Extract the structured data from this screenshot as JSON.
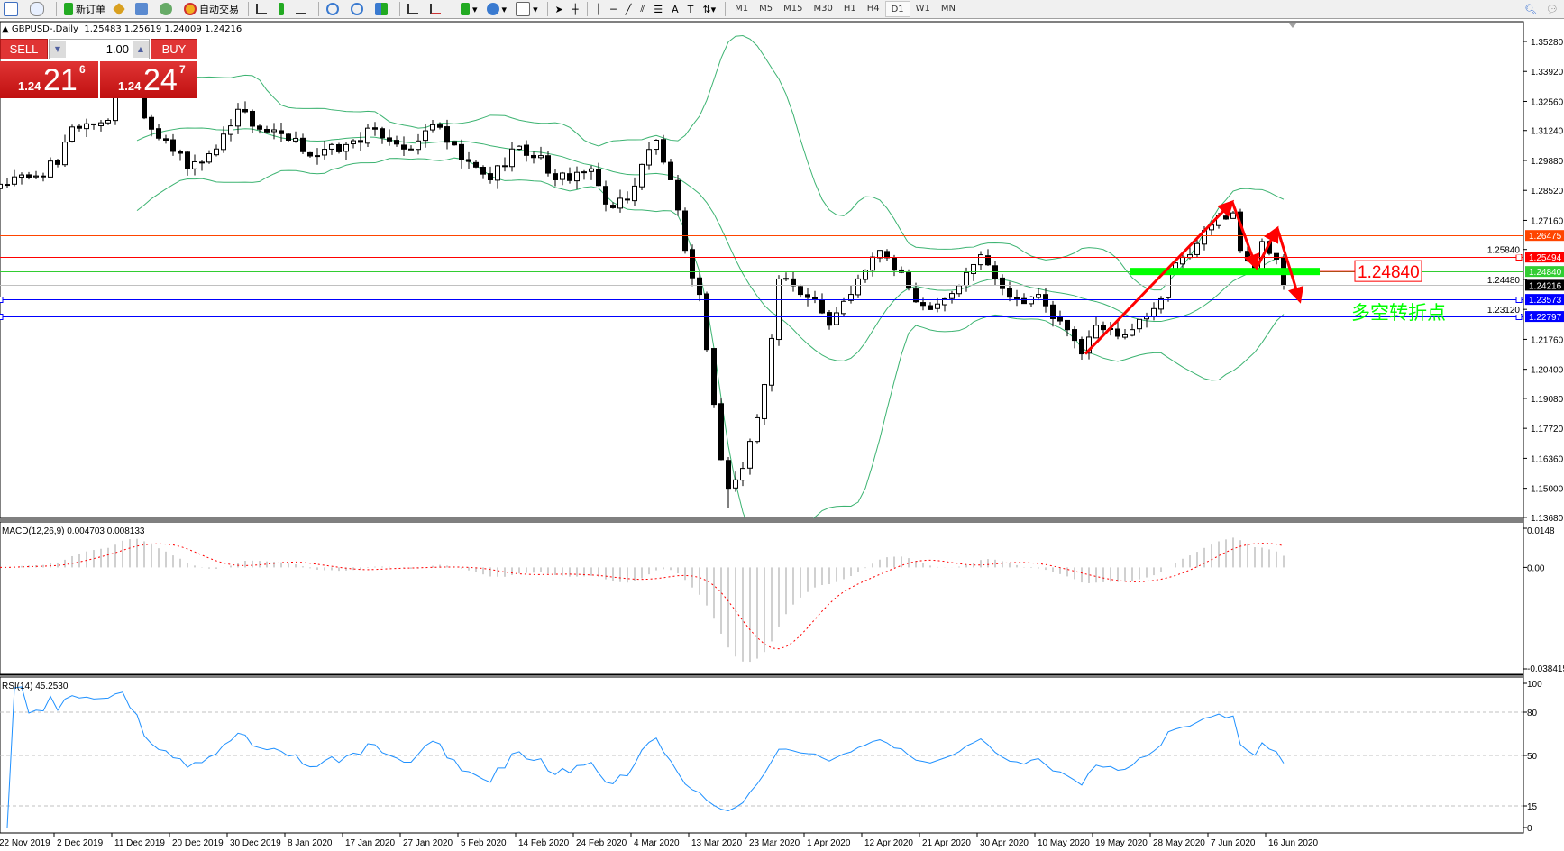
{
  "toolbar": {
    "new_order": "新订单",
    "autotrading": "自动交易",
    "timeframes": [
      "M1",
      "M5",
      "M15",
      "M30",
      "H1",
      "H4",
      "D1",
      "W1",
      "MN"
    ],
    "active_timeframe": "D1"
  },
  "chart": {
    "symbol": "GBPUSD-,Daily",
    "ohlc": "1.25483 1.25619 1.24009 1.24216"
  },
  "trade_panel": {
    "sell": "SELL",
    "buy": "BUY",
    "lot": "1.00",
    "sell_price": {
      "prefix": "1.24",
      "big": "21",
      "small": "6"
    },
    "buy_price": {
      "prefix": "1.24",
      "big": "24",
      "small": "7"
    }
  },
  "price_axis": {
    "ticks": [
      "1.35280",
      "1.33920",
      "1.32560",
      "1.31240",
      "1.29880",
      "1.28520",
      "1.27160",
      "1.25840",
      "1.24480",
      "1.23120",
      "1.21760",
      "1.20400",
      "1.19080",
      "1.17720",
      "1.16360",
      "1.15000",
      "1.13680"
    ]
  },
  "levels": [
    {
      "price": "1.26475",
      "color": "#ff4500",
      "text_color": "#ffffff"
    },
    {
      "price": "1.25494",
      "color": "#ff0000",
      "text_color": "#ffffff",
      "handle": true
    },
    {
      "price": "1.24840",
      "color": "#32cd32",
      "text_color": "#ffffff"
    },
    {
      "price": "1.24216",
      "color": "#000000",
      "line_color": "#c0c0c0",
      "text_color": "#ffffff"
    },
    {
      "price": "1.23573",
      "color": "#0000ff",
      "text_color": "#ffffff",
      "handle": true
    },
    {
      "price": "1.22797",
      "color": "#0000ff",
      "text_color": "#ffffff",
      "handle": true
    }
  ],
  "annotations": {
    "level_label": "1.24840",
    "note": "多空转折点",
    "note_color": "#00ff00",
    "arrow_color": "#ff0000",
    "zone_color": "#00ff00"
  },
  "macd": {
    "label": "MACD(12,26,9) 0.004703 0.008133",
    "axis": [
      "0.0148",
      "0.00",
      "-0.038415"
    ]
  },
  "rsi": {
    "label": "RSI(14) 45.2530",
    "axis": [
      "100",
      "80",
      "50",
      "15",
      "0"
    ]
  },
  "time_axis": [
    "22 Nov 2019",
    "2 Dec 2019",
    "11 Dec 2019",
    "20 Dec 2019",
    "30 Dec 2019",
    "8 Jan 2020",
    "17 Jan 2020",
    "27 Jan 2020",
    "5 Feb 2020",
    "14 Feb 2020",
    "24 Feb 2020",
    "4 Mar 2020",
    "13 Mar 2020",
    "23 Mar 2020",
    "1 Apr 2020",
    "12 Apr 2020",
    "21 Apr 2020",
    "30 Apr 2020",
    "10 May 2020",
    "19 May 2020",
    "28 May 2020",
    "7 Jun 2020",
    "16 Jun 2020"
  ],
  "chart_data": {
    "type": "candlestick",
    "indicators": [
      "Bollinger Bands (20,2)",
      "MACD(12,26,9)",
      "RSI(14)"
    ],
    "price_range": [
      1.1368,
      1.3528
    ],
    "close_keypoints_by_bar": [
      [
        0,
        1.288
      ],
      [
        4,
        1.2912
      ],
      [
        8,
        1.297
      ],
      [
        10,
        1.314
      ],
      [
        15,
        1.317
      ],
      [
        17,
        1.338
      ],
      [
        19,
        1.329
      ],
      [
        21,
        1.313
      ],
      [
        23,
        1.308
      ],
      [
        26,
        1.295
      ],
      [
        30,
        1.304
      ],
      [
        33,
        1.322
      ],
      [
        36,
        1.313
      ],
      [
        40,
        1.308
      ],
      [
        44,
        1.301
      ],
      [
        48,
        1.306
      ],
      [
        52,
        1.313
      ],
      [
        57,
        1.304
      ],
      [
        60,
        1.315
      ],
      [
        64,
        1.299
      ],
      [
        68,
        1.29
      ],
      [
        71,
        1.304
      ],
      [
        75,
        1.301
      ],
      [
        77,
        1.29
      ],
      [
        82,
        1.295
      ],
      [
        84,
        1.279
      ],
      [
        87,
        1.281
      ],
      [
        89,
        1.297
      ],
      [
        91,
        1.308
      ],
      [
        93,
        1.29
      ],
      [
        95,
        1.258
      ],
      [
        97,
        1.238
      ],
      [
        98,
        1.213
      ],
      [
        100,
        1.163
      ],
      [
        101,
        1.15
      ],
      [
        103,
        1.159
      ],
      [
        105,
        1.182
      ],
      [
        107,
        1.218
      ],
      [
        108,
        1.245
      ],
      [
        111,
        1.238
      ],
      [
        113,
        1.236
      ],
      [
        115,
        1.224
      ],
      [
        118,
        1.238
      ],
      [
        120,
        1.249
      ],
      [
        122,
        1.258
      ],
      [
        124,
        1.249
      ],
      [
        128,
        1.233
      ],
      [
        131,
        1.236
      ],
      [
        133,
        1.242
      ],
      [
        136,
        1.256
      ],
      [
        138,
        1.245
      ],
      [
        141,
        1.236
      ],
      [
        144,
        1.238
      ],
      [
        146,
        1.227
      ],
      [
        148,
        1.222
      ],
      [
        150,
        1.211
      ],
      [
        152,
        1.224
      ],
      [
        155,
        1.219
      ],
      [
        157,
        1.222
      ],
      [
        159,
        1.228
      ],
      [
        161,
        1.236
      ],
      [
        162,
        1.249
      ],
      [
        165,
        1.256
      ],
      [
        167,
        1.267
      ],
      [
        169,
        1.274
      ],
      [
        171,
        1.275
      ],
      [
        172,
        1.258
      ],
      [
        174,
        1.249
      ],
      [
        175,
        1.262
      ],
      [
        177,
        1.254
      ],
      [
        178,
        1.24216
      ]
    ],
    "last_bar": {
      "open": 1.25483,
      "high": 1.25619,
      "low": 1.24009,
      "close": 1.24216
    },
    "period_low": 1.1409,
    "arrow_path_prices": [
      1.211,
      1.28,
      1.25,
      1.268,
      1.235
    ]
  }
}
